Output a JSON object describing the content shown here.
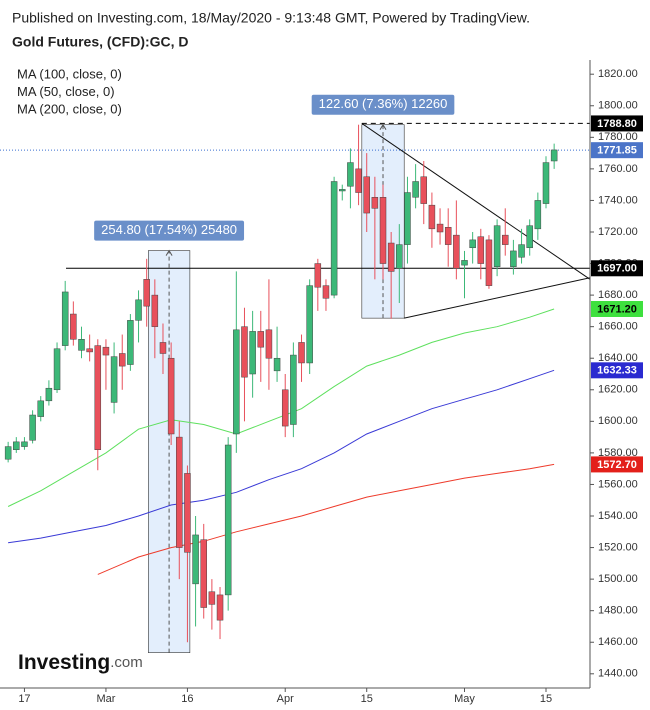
{
  "chart_data": {
    "type": "candlestick",
    "subtitle": "Published on Investing.com, 18/May/2020 - 9:13:48 GMT, Powered by TradingView.",
    "title": "Gold Futures, (CFD):GC, D",
    "logo": {
      "name": "Investing",
      "suffix": ".com"
    },
    "categories": [
      null,
      null,
      "17",
      null,
      null,
      null,
      null,
      null,
      null,
      null,
      null,
      null,
      "Mar",
      null,
      null,
      null,
      null,
      null,
      null,
      null,
      null,
      null,
      "16",
      null,
      null,
      null,
      null,
      null,
      null,
      null,
      null,
      null,
      null,
      null,
      "Apr",
      null,
      null,
      null,
      null,
      null,
      null,
      null,
      null,
      null,
      "15",
      null,
      null,
      null,
      null,
      null,
      null,
      null,
      null,
      null,
      null,
      null,
      "May",
      null,
      null,
      null,
      null,
      null,
      null,
      null,
      null,
      null,
      "15",
      null
    ],
    "ohlc": {
      "open": [
        1576,
        1582,
        1584,
        1588,
        1603,
        1613,
        1620,
        1648,
        1668,
        1645,
        1646,
        1648,
        1647,
        1612,
        1643,
        1636,
        1664,
        1690,
        1680,
        1650,
        1640,
        1590,
        1567,
        1497,
        1525,
        1492,
        1490,
        1490,
        1592,
        1660,
        1630,
        1657,
        1658,
        1632,
        1620,
        1598,
        1650,
        1637,
        1700,
        1686,
        1680,
        1746,
        1749,
        1760,
        1755,
        1742,
        1742,
        1713,
        1697,
        1712,
        1742,
        1755,
        1737,
        1725,
        1723,
        1718,
        1699,
        1710,
        1717,
        1715,
        1698,
        1718,
        1698,
        1704,
        1710,
        1722,
        1738,
        1765
      ],
      "high": [
        1587,
        1590,
        1590,
        1607,
        1616,
        1626,
        1650,
        1689,
        1676,
        1660,
        1655,
        1652,
        1652,
        1650,
        1655,
        1668,
        1683,
        1703,
        1690,
        1662,
        1650,
        1600,
        1572,
        1540,
        1535,
        1500,
        1495,
        1590,
        1695,
        1672,
        1670,
        1670,
        1690,
        1660,
        1630,
        1650,
        1655,
        1690,
        1703,
        1690,
        1755,
        1750,
        1773,
        1788,
        1770,
        1755,
        1750,
        1720,
        1725,
        1755,
        1763,
        1765,
        1745,
        1735,
        1735,
        1740,
        1708,
        1720,
        1722,
        1718,
        1728,
        1735,
        1715,
        1722,
        1728,
        1745,
        1768,
        1776
      ],
      "low": [
        1574,
        1580,
        1582,
        1586,
        1600,
        1610,
        1618,
        1645,
        1648,
        1640,
        1638,
        1569,
        1620,
        1605,
        1620,
        1632,
        1650,
        1660,
        1640,
        1630,
        1585,
        1500,
        1460,
        1470,
        1475,
        1468,
        1462,
        1480,
        1580,
        1600,
        1615,
        1625,
        1620,
        1625,
        1590,
        1590,
        1625,
        1630,
        1670,
        1670,
        1678,
        1740,
        1735,
        1737,
        1720,
        1690,
        1690,
        1665,
        1675,
        1700,
        1735,
        1725,
        1710,
        1712,
        1698,
        1690,
        1678,
        1700,
        1690,
        1684,
        1692,
        1705,
        1693,
        1700,
        1705,
        1715,
        1735,
        1760
      ],
      "close": [
        1584,
        1587,
        1587,
        1604,
        1613,
        1621,
        1646,
        1682,
        1652,
        1652,
        1644,
        1582,
        1642,
        1641,
        1635,
        1664,
        1677,
        1673,
        1660,
        1643,
        1592,
        1520,
        1517,
        1528,
        1482,
        1484,
        1474,
        1585,
        1658,
        1628,
        1657,
        1647,
        1640,
        1640,
        1597,
        1642,
        1637,
        1686,
        1685,
        1678,
        1752,
        1747,
        1764,
        1745,
        1732,
        1735,
        1700,
        1695,
        1712,
        1745,
        1752,
        1738,
        1722,
        1720,
        1712,
        1697,
        1702,
        1715,
        1700,
        1686,
        1724,
        1712,
        1708,
        1712,
        1724,
        1740,
        1764,
        1772
      ]
    },
    "up_color": "#3cb878",
    "down_color": "#e8505b",
    "series": [
      {
        "name": "MA (100, close, 0)",
        "color": "#3a3ad6",
        "x": [
          0,
          4,
          8,
          12,
          16,
          20,
          24,
          28,
          32,
          36,
          40,
          44,
          48,
          52,
          56,
          60,
          64,
          67
        ],
        "values": [
          1523,
          1526,
          1530,
          1534,
          1540,
          1547,
          1550,
          1555,
          1563,
          1570,
          1580,
          1592,
          1600,
          1608,
          1614,
          1620,
          1627,
          1632.33
        ]
      },
      {
        "name": "MA (50, close, 0)",
        "color": "#5ee05e",
        "x": [
          0,
          4,
          8,
          12,
          16,
          20,
          24,
          28,
          32,
          36,
          40,
          44,
          48,
          52,
          56,
          60,
          64,
          67
        ],
        "values": [
          1546,
          1556,
          1568,
          1580,
          1595,
          1601,
          1598,
          1592,
          1600,
          1608,
          1622,
          1635,
          1642,
          1650,
          1656,
          1660,
          1666,
          1671.2
        ]
      },
      {
        "name": "MA (200, close, 0)",
        "color": "#ee3b2b",
        "x": [
          11,
          16,
          20,
          24,
          28,
          32,
          36,
          40,
          44,
          48,
          52,
          56,
          60,
          64,
          67
        ],
        "values": [
          1503,
          1514,
          1520,
          1524,
          1530,
          1535,
          1540,
          1546,
          1552,
          1556,
          1560,
          1564,
          1567,
          1570,
          1572.7
        ]
      }
    ],
    "xlim": [
      -1,
      71.4
    ],
    "ylim": [
      1431,
      1829
    ],
    "yticks": [
      {
        "value": 1440,
        "label": "1440.00"
      },
      {
        "value": 1460,
        "label": "1460.00"
      },
      {
        "value": 1480,
        "label": "1480.00"
      },
      {
        "value": 1500,
        "label": "1500.00"
      },
      {
        "value": 1520,
        "label": "1520.00"
      },
      {
        "value": 1540,
        "label": "1540.00"
      },
      {
        "value": 1560,
        "label": "1560.00"
      },
      {
        "value": 1580,
        "label": "1580.00"
      },
      {
        "value": 1600,
        "label": "1600.00"
      },
      {
        "value": 1620,
        "label": "1620.00"
      },
      {
        "value": 1640,
        "label": "1640.00"
      },
      {
        "value": 1660,
        "label": "1660.00"
      },
      {
        "value": 1680,
        "label": "1680.00"
      },
      {
        "value": 1700,
        "label": "1700.00"
      },
      {
        "value": 1720,
        "label": "1720.00"
      },
      {
        "value": 1740,
        "label": "1740.00"
      },
      {
        "value": 1760,
        "label": "1760.00"
      },
      {
        "value": 1780,
        "label": "1780.00"
      },
      {
        "value": 1800,
        "label": "1800.00"
      },
      {
        "value": 1820,
        "label": "1820.00"
      }
    ],
    "price_labels": [
      {
        "value": 1788.8,
        "label": "1788.80",
        "color": "#000000",
        "text_color": "#ffffff"
      },
      {
        "value": 1771.85,
        "label": "1771.85",
        "color": "#4b74c8",
        "text_color": "#ffffff"
      },
      {
        "value": 1697,
        "label": "1697.00",
        "color": "#000000",
        "text_color": "#ffffff"
      },
      {
        "value": 1671.2,
        "label": "1671.20",
        "color": "#3ee03e",
        "text_color": "#000000"
      },
      {
        "value": 1632.33,
        "label": "1632.33",
        "color": "#2a2ad0",
        "text_color": "#ffffff"
      },
      {
        "value": 1572.7,
        "label": "1572.70",
        "color": "#e3201a",
        "text_color": "#ffffff"
      }
    ],
    "lines": [
      {
        "y": 1771.85,
        "from": -1,
        "color": "#3b6fd0",
        "dash": "1,2"
      },
      {
        "y": 1788.8,
        "from": 43.4,
        "color": "#000000",
        "dash": "5,4"
      },
      {
        "y": 1697,
        "from": 7.1,
        "color": "#000000",
        "dash": "none"
      }
    ],
    "trendlines": [
      {
        "x": [
          43.4,
          71.4
        ],
        "y": [
          1788.8,
          1690
        ]
      },
      {
        "x": [
          48.6,
          71.4
        ],
        "y": [
          1665.4,
          1691
        ]
      }
    ],
    "measures": [
      {
        "label": "254.80 (17.54%) 25480",
        "start": 17.2,
        "end": 22.3,
        "low": 1453.4,
        "high": 1708.2
      },
      {
        "label": "122.60 (7.36%) 12260",
        "start": 43.4,
        "end": 48.6,
        "low": 1665.4,
        "high": 1788
      }
    ]
  }
}
